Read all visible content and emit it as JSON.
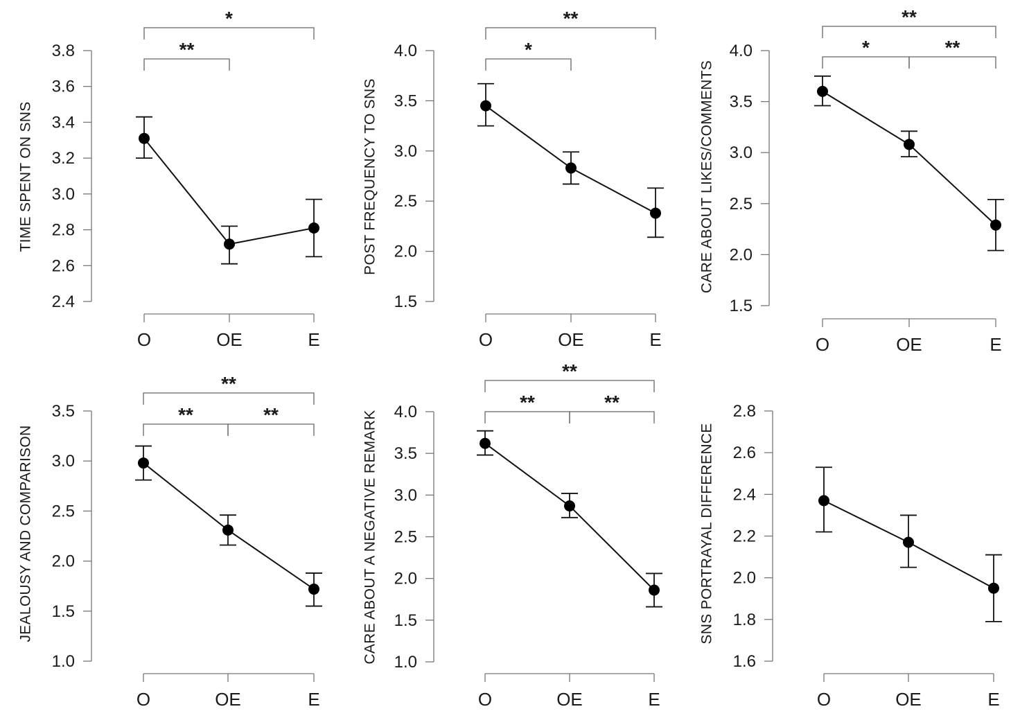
{
  "chart_data": [
    {
      "type": "line",
      "ylabel": "TIME SPENT ON SNS",
      "categories": [
        "O",
        "OE",
        "E"
      ],
      "values": [
        3.31,
        2.72,
        2.81
      ],
      "error_low": [
        3.2,
        2.61,
        2.65
      ],
      "error_high": [
        3.43,
        2.82,
        2.97
      ],
      "ylim": [
        2.4,
        3.8
      ],
      "yticks": [
        2.4,
        2.6,
        2.8,
        3.0,
        3.2,
        3.4,
        3.6,
        3.8
      ],
      "ytick_labels": [
        "2.4",
        "2.6",
        "2.8",
        "3.0",
        "3.2",
        "3.4",
        "3.6",
        "3.8"
      ],
      "significance": [
        {
          "from": "O",
          "to": "E",
          "label": "*",
          "level": 2
        },
        {
          "from": "O",
          "to": "OE",
          "label": "**",
          "level": 1
        }
      ]
    },
    {
      "type": "line",
      "ylabel": "POST FREQUENCY TO SNS",
      "categories": [
        "O",
        "OE",
        "E"
      ],
      "values": [
        3.45,
        2.83,
        2.38
      ],
      "error_low": [
        3.25,
        2.67,
        2.14
      ],
      "error_high": [
        3.67,
        2.99,
        2.63
      ],
      "ylim": [
        1.5,
        4.0
      ],
      "yticks": [
        1.5,
        2.0,
        2.5,
        3.0,
        3.5,
        4.0
      ],
      "ytick_labels": [
        "1.5",
        "2.0",
        "2.5",
        "3.0",
        "3.5",
        "4.0"
      ],
      "significance": [
        {
          "from": "O",
          "to": "E",
          "label": "**",
          "level": 2
        },
        {
          "from": "O",
          "to": "OE",
          "label": "*",
          "level": 1
        }
      ]
    },
    {
      "type": "line",
      "ylabel": "CARE ABOUT LIKES/COMMENTS",
      "categories": [
        "O",
        "OE",
        "E"
      ],
      "values": [
        3.6,
        3.08,
        2.29
      ],
      "error_low": [
        3.46,
        2.96,
        2.04
      ],
      "error_high": [
        3.75,
        3.21,
        2.54
      ],
      "ylim": [
        1.5,
        4.0
      ],
      "yticks": [
        1.5,
        2.0,
        2.5,
        3.0,
        3.5,
        4.0
      ],
      "ytick_labels": [
        "1.5",
        "2.0",
        "2.5",
        "3.0",
        "3.5",
        "4.0"
      ],
      "significance": [
        {
          "from": "O",
          "to": "E",
          "label": "**",
          "level": 2
        },
        {
          "from": "O",
          "to": "OE",
          "label": "*",
          "level": 1
        },
        {
          "from": "OE",
          "to": "E",
          "label": "**",
          "level": 1
        }
      ]
    },
    {
      "type": "line",
      "ylabel": "JEALOUSY AND COMPARISON",
      "categories": [
        "O",
        "OE",
        "E"
      ],
      "values": [
        2.98,
        2.31,
        1.72
      ],
      "error_low": [
        2.81,
        2.16,
        1.55
      ],
      "error_high": [
        3.15,
        2.46,
        1.88
      ],
      "ylim": [
        1.0,
        3.5
      ],
      "yticks": [
        1.0,
        1.5,
        2.0,
        2.5,
        3.0,
        3.5
      ],
      "ytick_labels": [
        "1.0",
        "1.5",
        "2.0",
        "2.5",
        "3.0",
        "3.5"
      ],
      "significance": [
        {
          "from": "O",
          "to": "E",
          "label": "**",
          "level": 2
        },
        {
          "from": "O",
          "to": "OE",
          "label": "**",
          "level": 1
        },
        {
          "from": "OE",
          "to": "E",
          "label": "**",
          "level": 1
        }
      ]
    },
    {
      "type": "line",
      "ylabel": "CARE ABOUT A NEGATIVE REMARK",
      "categories": [
        "O",
        "OE",
        "E"
      ],
      "values": [
        3.62,
        2.87,
        1.86
      ],
      "error_low": [
        3.48,
        2.73,
        1.66
      ],
      "error_high": [
        3.77,
        3.02,
        2.06
      ],
      "ylim": [
        1.0,
        4.0
      ],
      "yticks": [
        1.0,
        1.5,
        2.0,
        2.5,
        3.0,
        3.5,
        4.0
      ],
      "ytick_labels": [
        "1.0",
        "1.5",
        "2.0",
        "2.5",
        "3.0",
        "3.5",
        "4.0"
      ],
      "significance": [
        {
          "from": "O",
          "to": "E",
          "label": "**",
          "level": 2
        },
        {
          "from": "O",
          "to": "OE",
          "label": "**",
          "level": 1
        },
        {
          "from": "OE",
          "to": "E",
          "label": "**",
          "level": 1
        }
      ]
    },
    {
      "type": "line",
      "ylabel": "SNS PORTRAYAL DIFFERENCE",
      "categories": [
        "O",
        "OE",
        "E"
      ],
      "values": [
        2.37,
        2.17,
        1.95
      ],
      "error_low": [
        2.22,
        2.05,
        1.79
      ],
      "error_high": [
        2.53,
        2.3,
        2.11
      ],
      "ylim": [
        1.6,
        2.8
      ],
      "yticks": [
        1.6,
        1.8,
        2.0,
        2.2,
        2.4,
        2.6,
        2.8
      ],
      "ytick_labels": [
        "1.6",
        "1.8",
        "2.0",
        "2.2",
        "2.4",
        "2.6",
        "2.8"
      ],
      "significance": []
    }
  ]
}
